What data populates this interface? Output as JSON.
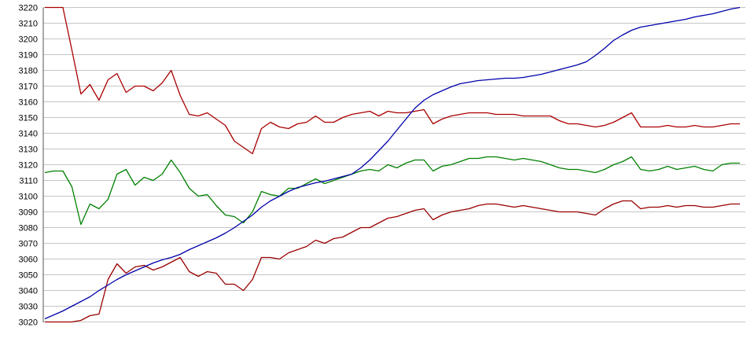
{
  "chart_data": {
    "type": "line",
    "title": "",
    "legend": false,
    "grid": true,
    "background_color": "#ffffff",
    "grid_color": "#c6c6c6",
    "axis_line_color": "#555555",
    "y_axis": {
      "min": 3020,
      "max": 3220,
      "step": 10,
      "tick_labels": [
        "3220",
        "3210",
        "3200",
        "3190",
        "3180",
        "3170",
        "3160",
        "3150",
        "3140",
        "3130",
        "3120",
        "3110",
        "3100",
        "3090",
        "3080",
        "3070",
        "3060",
        "3050",
        "3040",
        "3030",
        "3020"
      ]
    },
    "x_axis": {
      "tick_labels": [],
      "point_count": 78
    },
    "series": [
      {
        "name": "upper-red",
        "color": "#aa0000",
        "values": [
          3220,
          3220,
          3220,
          3193,
          3165,
          3171,
          3161,
          3174,
          3178,
          3166,
          3170,
          3170,
          3167,
          3172,
          3180,
          3164,
          3152,
          3151,
          3153,
          3149,
          3145,
          3135,
          3131,
          3127,
          3143,
          3147,
          3144,
          3143,
          3146,
          3147,
          3151,
          3147,
          3147,
          3150,
          3152,
          3153,
          3154,
          3151,
          3154,
          3153,
          3153,
          3154,
          3155,
          3146,
          3149,
          3151,
          3152,
          3153,
          3153,
          3153,
          3152,
          3152,
          3152,
          3151,
          3151,
          3151,
          3151,
          3148,
          3146,
          3146,
          3145,
          3144,
          3145,
          3147,
          3150,
          3153,
          3144,
          3144,
          3144,
          3145,
          3144,
          3144,
          3145,
          3144,
          3144,
          3145,
          3146,
          3146
        ]
      },
      {
        "name": "green",
        "color": "#008000",
        "values": [
          3115,
          3116,
          3116,
          3106,
          3082,
          3095,
          3092,
          3098,
          3114,
          3117,
          3107,
          3112,
          3110,
          3114,
          3123,
          3115,
          3105,
          3100,
          3101,
          3094,
          3088,
          3087,
          3083,
          3090,
          3103,
          3101,
          3100,
          3105,
          3105,
          3108,
          3111,
          3108,
          3110,
          3112,
          3114,
          3116,
          3117,
          3116,
          3120,
          3118,
          3121,
          3123,
          3123,
          3116,
          3119,
          3120,
          3122,
          3124,
          3124,
          3125,
          3125,
          3124,
          3123,
          3124,
          3123,
          3122,
          3120,
          3118,
          3117,
          3117,
          3116,
          3115,
          3117,
          3120,
          3122,
          3125,
          3117,
          3116,
          3117,
          3119,
          3117,
          3118,
          3119,
          3117,
          3116,
          3120,
          3121,
          3121
        ]
      },
      {
        "name": "lower-red",
        "color": "#990000",
        "values": [
          3020,
          3020,
          3020,
          3020,
          3021,
          3024,
          3025,
          3047,
          3057,
          3051,
          3055,
          3056,
          3053,
          3055,
          3058,
          3061,
          3052,
          3049,
          3052,
          3051,
          3044,
          3044,
          3040,
          3047,
          3061,
          3061,
          3060,
          3064,
          3066,
          3068,
          3072,
          3070,
          3073,
          3074,
          3077,
          3080,
          3080,
          3083,
          3086,
          3087,
          3089,
          3091,
          3092,
          3085,
          3088,
          3090,
          3091,
          3092,
          3094,
          3095,
          3095,
          3094,
          3093,
          3094,
          3093,
          3092,
          3091,
          3090,
          3090,
          3090,
          3089,
          3088,
          3092,
          3095,
          3097,
          3097,
          3092,
          3093,
          3093,
          3094,
          3093,
          3094,
          3094,
          3093,
          3093,
          3094,
          3095,
          3095
        ]
      },
      {
        "name": "blue",
        "color": "#0000aa",
        "values": [
          3022,
          3024.5,
          3027,
          3030,
          3033,
          3036,
          3040,
          3043.5,
          3047,
          3050,
          3052.5,
          3055,
          3057.5,
          3059.5,
          3061,
          3063,
          3066,
          3068.5,
          3071,
          3073.5,
          3076.5,
          3080,
          3084,
          3088,
          3093,
          3097,
          3100,
          3103,
          3105.5,
          3107,
          3108.5,
          3109.5,
          3111,
          3112.5,
          3114,
          3118,
          3123,
          3129,
          3135,
          3142,
          3149,
          3156,
          3161,
          3164.5,
          3167,
          3169.5,
          3171.5,
          3172.5,
          3173.5,
          3174,
          3174.5,
          3175,
          3175,
          3175.5,
          3176.5,
          3177.5,
          3179,
          3180.5,
          3182,
          3183.5,
          3185.5,
          3189.5,
          3194,
          3199,
          3202.5,
          3205.5,
          3207.5,
          3208.5,
          3209.5,
          3210.5,
          3211.5,
          3212.5,
          3214,
          3215,
          3216,
          3217.5,
          3219,
          3220
        ]
      }
    ]
  }
}
